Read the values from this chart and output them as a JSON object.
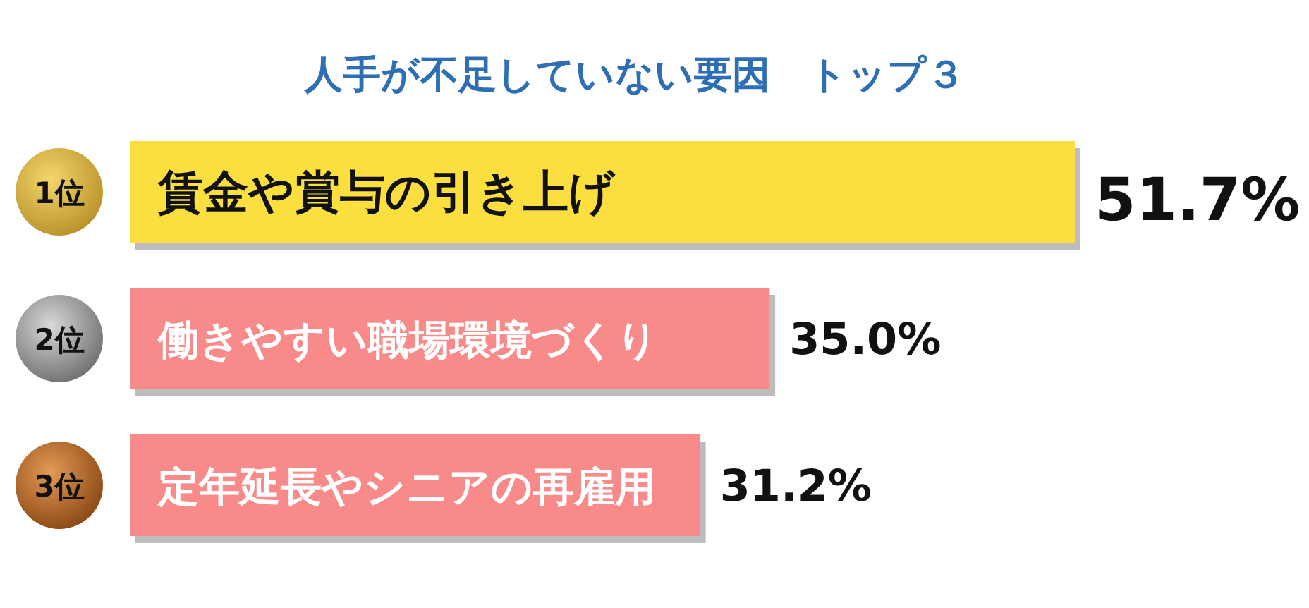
{
  "chart_data": {
    "type": "bar",
    "orientation": "horizontal",
    "title": "人手が不足していない要因　トップ３",
    "categories": [
      "賃金や賞与の引き上げ",
      "働きやすい職場環境づくり",
      "定年延長やシニアの再雇用"
    ],
    "values": [
      51.7,
      35.0,
      31.2
    ],
    "colors": [
      "#fbdf3e",
      "#f88a8a",
      "#f88a8a"
    ],
    "value_labels": [
      "51.7%",
      "35.0%",
      "31.2%"
    ],
    "annotations": [
      "1位",
      "2位",
      "3位"
    ]
  }
}
